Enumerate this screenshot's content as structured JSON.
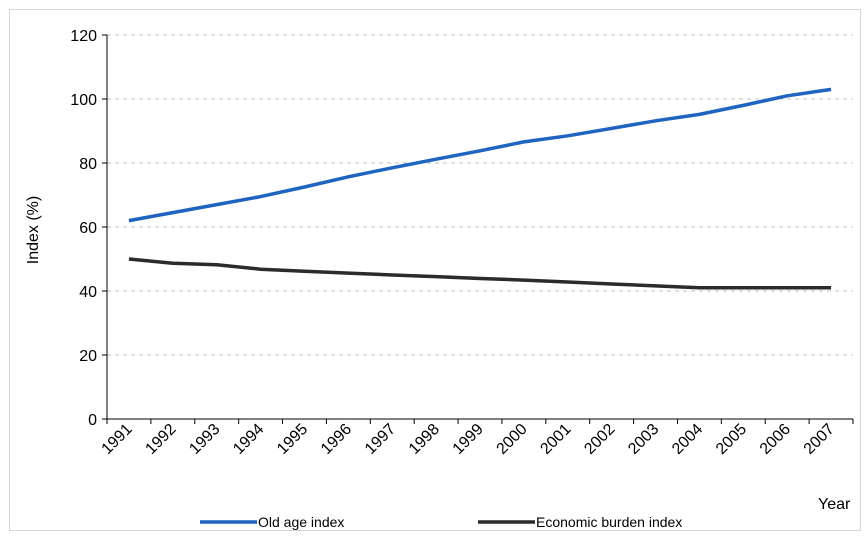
{
  "chart_data": {
    "type": "line",
    "title": "",
    "xlabel": "Year",
    "ylabel": "Index (%)",
    "x": [
      "1991",
      "1992",
      "1993",
      "1994",
      "1995",
      "1996",
      "1997",
      "1998",
      "1999",
      "2000",
      "2001",
      "2002",
      "2003",
      "2004",
      "2005",
      "2006",
      "2007"
    ],
    "ylim": [
      0,
      120
    ],
    "yticks": [
      0,
      20,
      40,
      60,
      80,
      100,
      120
    ],
    "grid": true,
    "legend_position": "bottom",
    "series": [
      {
        "name": "Old age index",
        "color": "#1f64c0",
        "values": [
          62,
          64.5,
          67,
          69.5,
          72.5,
          75.7,
          78.5,
          81.2,
          83.8,
          86.6,
          88.5,
          90.8,
          93.2,
          95.2,
          98,
          101,
          103
        ]
      },
      {
        "name": "Economic burden index",
        "color": "#2b2b2b",
        "values": [
          50,
          48.7,
          48.2,
          46.8,
          46.2,
          45.6,
          45,
          44.5,
          43.9,
          43.4,
          42.8,
          42.2,
          41.6,
          41,
          41,
          41,
          41
        ]
      }
    ]
  }
}
